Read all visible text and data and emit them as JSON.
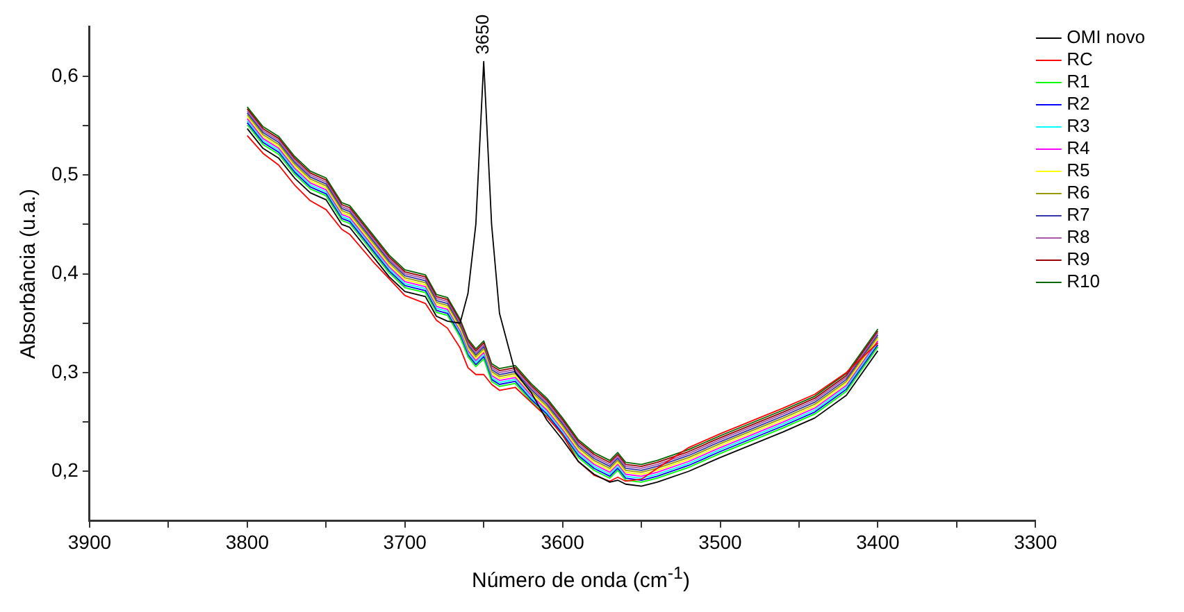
{
  "chart_data": {
    "type": "line",
    "xlabel": "Número de onda (cm$^{-1}$)",
    "ylabel": "Absorbância (u.a.)",
    "x": [
      3800,
      3790,
      3780,
      3770,
      3760,
      3750,
      3740,
      3735,
      3720,
      3710,
      3700,
      3687,
      3680,
      3673,
      3665,
      3660,
      3655,
      3650,
      3645,
      3640,
      3630,
      3620,
      3610,
      3600,
      3590,
      3580,
      3570,
      3565,
      3560,
      3550,
      3540,
      3520,
      3500,
      3480,
      3460,
      3440,
      3420,
      3400
    ],
    "series": [
      {
        "name": "OMI novo",
        "color": "#000000",
        "values": [
          0.547,
          0.527,
          0.517,
          0.497,
          0.482,
          0.475,
          0.45,
          0.447,
          0.417,
          0.397,
          0.382,
          0.377,
          0.357,
          0.352,
          0.35,
          0.38,
          0.45,
          0.615,
          0.45,
          0.36,
          0.3,
          0.28,
          0.252,
          0.232,
          0.21,
          0.197,
          0.189,
          0.191,
          0.187,
          0.185,
          0.189,
          0.2,
          0.214,
          0.227,
          0.24,
          0.254,
          0.277,
          0.322
        ]
      },
      {
        "name": "RC",
        "color": "#ff0000",
        "values": [
          0.54,
          0.522,
          0.51,
          0.49,
          0.474,
          0.465,
          0.445,
          0.44,
          0.412,
          0.395,
          0.378,
          0.37,
          0.353,
          0.345,
          0.325,
          0.305,
          0.298,
          0.298,
          0.288,
          0.282,
          0.285,
          0.27,
          0.255,
          0.237,
          0.21,
          0.196,
          0.19,
          0.194,
          0.19,
          0.192,
          0.203,
          0.224,
          0.238,
          0.251,
          0.264,
          0.278,
          0.3,
          0.33
        ]
      },
      {
        "name": "R1",
        "color": "#00ff00",
        "values": [
          0.551,
          0.531,
          0.521,
          0.501,
          0.486,
          0.479,
          0.454,
          0.451,
          0.421,
          0.401,
          0.386,
          0.381,
          0.361,
          0.358,
          0.336,
          0.316,
          0.306,
          0.314,
          0.291,
          0.286,
          0.289,
          0.271,
          0.256,
          0.236,
          0.214,
          0.201,
          0.193,
          0.201,
          0.191,
          0.189,
          0.193,
          0.204,
          0.218,
          0.231,
          0.244,
          0.258,
          0.281,
          0.326
        ]
      },
      {
        "name": "R2",
        "color": "#0000ff",
        "values": [
          0.553,
          0.533,
          0.523,
          0.503,
          0.488,
          0.481,
          0.456,
          0.453,
          0.423,
          0.403,
          0.388,
          0.383,
          0.363,
          0.36,
          0.338,
          0.318,
          0.308,
          0.316,
          0.293,
          0.288,
          0.291,
          0.273,
          0.258,
          0.238,
          0.216,
          0.203,
          0.195,
          0.203,
          0.193,
          0.191,
          0.195,
          0.206,
          0.22,
          0.233,
          0.246,
          0.26,
          0.283,
          0.328
        ]
      },
      {
        "name": "R3",
        "color": "#00ffff",
        "values": [
          0.555,
          0.535,
          0.525,
          0.505,
          0.49,
          0.483,
          0.458,
          0.455,
          0.425,
          0.405,
          0.39,
          0.385,
          0.365,
          0.362,
          0.34,
          0.32,
          0.31,
          0.318,
          0.295,
          0.29,
          0.293,
          0.275,
          0.26,
          0.24,
          0.218,
          0.205,
          0.197,
          0.205,
          0.195,
          0.193,
          0.197,
          0.208,
          0.222,
          0.235,
          0.248,
          0.262,
          0.285,
          0.33
        ]
      },
      {
        "name": "R4",
        "color": "#ff00ff",
        "values": [
          0.557,
          0.537,
          0.527,
          0.507,
          0.492,
          0.485,
          0.46,
          0.457,
          0.427,
          0.407,
          0.392,
          0.387,
          0.367,
          0.364,
          0.342,
          0.322,
          0.312,
          0.32,
          0.297,
          0.292,
          0.295,
          0.277,
          0.262,
          0.242,
          0.22,
          0.207,
          0.199,
          0.207,
          0.197,
          0.195,
          0.199,
          0.21,
          0.224,
          0.237,
          0.25,
          0.264,
          0.287,
          0.332
        ]
      },
      {
        "name": "R5",
        "color": "#ffff00",
        "values": [
          0.559,
          0.539,
          0.529,
          0.509,
          0.494,
          0.487,
          0.462,
          0.459,
          0.429,
          0.409,
          0.394,
          0.389,
          0.369,
          0.366,
          0.344,
          0.324,
          0.314,
          0.322,
          0.299,
          0.294,
          0.297,
          0.279,
          0.264,
          0.244,
          0.222,
          0.209,
          0.201,
          0.209,
          0.199,
          0.197,
          0.201,
          0.212,
          0.226,
          0.239,
          0.252,
          0.266,
          0.289,
          0.334
        ]
      },
      {
        "name": "R6",
        "color": "#999900",
        "values": [
          0.561,
          0.541,
          0.531,
          0.511,
          0.496,
          0.489,
          0.464,
          0.461,
          0.431,
          0.411,
          0.396,
          0.391,
          0.371,
          0.368,
          0.346,
          0.326,
          0.316,
          0.324,
          0.301,
          0.296,
          0.299,
          0.281,
          0.266,
          0.246,
          0.224,
          0.211,
          0.203,
          0.211,
          0.201,
          0.199,
          0.203,
          0.214,
          0.228,
          0.241,
          0.254,
          0.268,
          0.291,
          0.336
        ]
      },
      {
        "name": "R7",
        "color": "#3333aa",
        "values": [
          0.563,
          0.543,
          0.533,
          0.513,
          0.498,
          0.491,
          0.466,
          0.463,
          0.433,
          0.413,
          0.398,
          0.393,
          0.373,
          0.37,
          0.348,
          0.328,
          0.318,
          0.326,
          0.303,
          0.298,
          0.301,
          0.283,
          0.268,
          0.248,
          0.226,
          0.213,
          0.205,
          0.213,
          0.203,
          0.201,
          0.205,
          0.216,
          0.23,
          0.243,
          0.256,
          0.27,
          0.293,
          0.338
        ]
      },
      {
        "name": "R8",
        "color": "#aa55aa",
        "values": [
          0.565,
          0.545,
          0.535,
          0.515,
          0.5,
          0.493,
          0.468,
          0.465,
          0.435,
          0.415,
          0.4,
          0.395,
          0.375,
          0.372,
          0.35,
          0.33,
          0.32,
          0.328,
          0.305,
          0.3,
          0.303,
          0.285,
          0.27,
          0.25,
          0.228,
          0.215,
          0.207,
          0.215,
          0.205,
          0.203,
          0.207,
          0.218,
          0.232,
          0.245,
          0.258,
          0.272,
          0.295,
          0.34
        ]
      },
      {
        "name": "R9",
        "color": "#990000",
        "values": [
          0.567,
          0.547,
          0.537,
          0.517,
          0.502,
          0.495,
          0.47,
          0.467,
          0.437,
          0.417,
          0.402,
          0.397,
          0.377,
          0.374,
          0.352,
          0.332,
          0.322,
          0.33,
          0.307,
          0.302,
          0.305,
          0.287,
          0.272,
          0.252,
          0.23,
          0.217,
          0.209,
          0.217,
          0.207,
          0.205,
          0.209,
          0.22,
          0.234,
          0.247,
          0.26,
          0.274,
          0.297,
          0.342
        ]
      },
      {
        "name": "R10",
        "color": "#006600",
        "values": [
          0.569,
          0.549,
          0.539,
          0.519,
          0.504,
          0.497,
          0.472,
          0.469,
          0.439,
          0.419,
          0.404,
          0.399,
          0.379,
          0.376,
          0.354,
          0.334,
          0.324,
          0.332,
          0.309,
          0.304,
          0.307,
          0.289,
          0.274,
          0.254,
          0.232,
          0.219,
          0.211,
          0.219,
          0.209,
          0.207,
          0.211,
          0.222,
          0.236,
          0.249,
          0.262,
          0.276,
          0.299,
          0.344
        ]
      }
    ],
    "xlim": [
      3900,
      3300
    ],
    "xticks": [
      3900,
      {
        "value": 3850,
        "label": null
      },
      3800,
      {
        "value": 3750,
        "label": null
      },
      3700,
      {
        "value": 3650,
        "label": null
      },
      3600,
      {
        "value": 3550,
        "label": null
      },
      3500,
      {
        "value": 3450,
        "label": null
      },
      3400,
      {
        "value": 3350,
        "label": null
      },
      3300
    ],
    "ylim": [
      0.15,
      0.65
    ],
    "yticks": [
      {
        "value": 0.2,
        "label": "0,2"
      },
      {
        "value": 0.25,
        "label": null
      },
      {
        "value": 0.3,
        "label": "0,3"
      },
      {
        "value": 0.35,
        "label": null
      },
      {
        "value": 0.4,
        "label": "0,4"
      },
      {
        "value": 0.45,
        "label": null
      },
      {
        "value": 0.5,
        "label": "0,5"
      },
      {
        "value": 0.55,
        "label": null
      },
      {
        "value": 0.6,
        "label": "0,6"
      }
    ],
    "annotations": [
      {
        "text": "3650",
        "x": 3650,
        "y": 0.615
      }
    ],
    "grid": false,
    "legend": "right",
    "marker": "none",
    "line_style": "solid"
  }
}
